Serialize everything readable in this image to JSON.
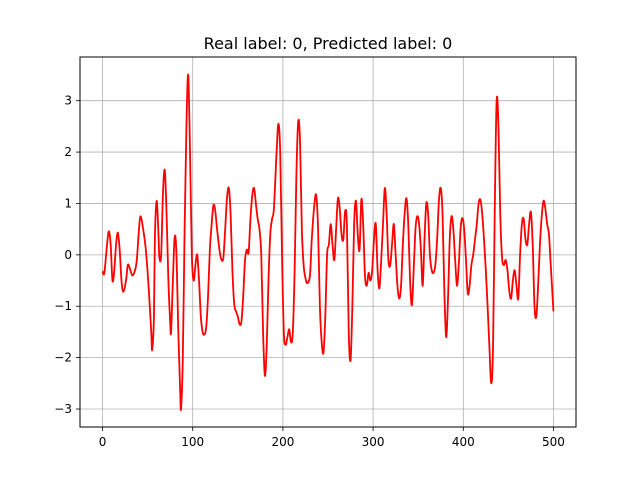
{
  "chart_data": {
    "type": "line",
    "title": "Real label: 0, Predicted label: 0",
    "xlabel": "",
    "ylabel": "",
    "xlim": [
      -25,
      525
    ],
    "ylim": [
      -3.35,
      3.85
    ],
    "xticks": [
      0,
      100,
      200,
      300,
      400,
      500
    ],
    "yticks": [
      -3,
      -2,
      -1,
      0,
      1,
      2,
      3
    ],
    "grid": true,
    "series": [
      {
        "name": "",
        "color": "#ff0000",
        "points": [
          [
            0,
            -0.32
          ],
          [
            2,
            -0.35
          ],
          [
            5,
            0.2
          ],
          [
            7,
            0.46
          ],
          [
            9,
            0.2
          ],
          [
            11,
            -0.5
          ],
          [
            13,
            -0.3
          ],
          [
            15,
            0.2
          ],
          [
            17,
            0.43
          ],
          [
            19,
            0.1
          ],
          [
            21,
            -0.5
          ],
          [
            23,
            -0.72
          ],
          [
            26,
            -0.5
          ],
          [
            28,
            -0.2
          ],
          [
            30,
            -0.25
          ],
          [
            33,
            -0.4
          ],
          [
            36,
            -0.3
          ],
          [
            38,
            -0.1
          ],
          [
            40,
            0.4
          ],
          [
            42,
            0.75
          ],
          [
            45,
            0.5
          ],
          [
            48,
            0.1
          ],
          [
            51,
            -0.6
          ],
          [
            54,
            -1.5
          ],
          [
            55,
            -1.85
          ],
          [
            57,
            -1.2
          ],
          [
            58,
            0.3
          ],
          [
            60,
            1.05
          ],
          [
            62,
            0.4
          ],
          [
            63,
            -0.05
          ],
          [
            65,
            0.0
          ],
          [
            67,
            1.2
          ],
          [
            69,
            1.65
          ],
          [
            71,
            0.8
          ],
          [
            73,
            -0.5
          ],
          [
            75,
            -1.3
          ],
          [
            76,
            -1.5
          ],
          [
            78,
            -0.5
          ],
          [
            80,
            0.35
          ],
          [
            82,
            0.0
          ],
          [
            84,
            -1.5
          ],
          [
            86,
            -2.6
          ],
          [
            87,
            -3.0
          ],
          [
            89,
            -2.0
          ],
          [
            91,
            0.5
          ],
          [
            93,
            2.5
          ],
          [
            95,
            3.5
          ],
          [
            97,
            2.0
          ],
          [
            99,
            0.0
          ],
          [
            101,
            -0.5
          ],
          [
            103,
            -0.2
          ],
          [
            105,
            0.0
          ],
          [
            107,
            -0.5
          ],
          [
            109,
            -1.2
          ],
          [
            111,
            -1.5
          ],
          [
            113,
            -1.55
          ],
          [
            115,
            -1.4
          ],
          [
            117,
            -0.8
          ],
          [
            119,
            0.1
          ],
          [
            121,
            0.6
          ],
          [
            123,
            0.97
          ],
          [
            125,
            0.85
          ],
          [
            127,
            0.5
          ],
          [
            130,
            0.05
          ],
          [
            132,
            -0.1
          ],
          [
            134,
            -0.05
          ],
          [
            136,
            0.5
          ],
          [
            138,
            1.1
          ],
          [
            140,
            1.3
          ],
          [
            142,
            0.8
          ],
          [
            144,
            -0.3
          ],
          [
            146,
            -0.95
          ],
          [
            148,
            -1.1
          ],
          [
            150,
            -1.2
          ],
          [
            152,
            -1.35
          ],
          [
            154,
            -1.3
          ],
          [
            156,
            -0.8
          ],
          [
            158,
            -0.1
          ],
          [
            160,
            0.1
          ],
          [
            162,
            0.05
          ],
          [
            164,
            0.7
          ],
          [
            166,
            1.15
          ],
          [
            168,
            1.3
          ],
          [
            170,
            1.0
          ],
          [
            172,
            0.7
          ],
          [
            174,
            0.5
          ],
          [
            176,
            0.0
          ],
          [
            178,
            -1.5
          ],
          [
            180,
            -2.35
          ],
          [
            182,
            -1.8
          ],
          [
            184,
            -0.5
          ],
          [
            186,
            0.4
          ],
          [
            188,
            0.7
          ],
          [
            190,
            0.9
          ],
          [
            193,
            2.0
          ],
          [
            195,
            2.55
          ],
          [
            197,
            2.0
          ],
          [
            199,
            0.0
          ],
          [
            201,
            -1.5
          ],
          [
            203,
            -1.75
          ],
          [
            205,
            -1.6
          ],
          [
            207,
            -1.45
          ],
          [
            209,
            -1.7
          ],
          [
            211,
            -1.5
          ],
          [
            213,
            -0.3
          ],
          [
            215,
            1.6
          ],
          [
            217,
            2.6
          ],
          [
            219,
            2.2
          ],
          [
            221,
            0.5
          ],
          [
            223,
            -0.2
          ],
          [
            225,
            -0.45
          ],
          [
            227,
            -0.55
          ],
          [
            230,
            -0.4
          ],
          [
            232,
            0.3
          ],
          [
            235,
            1.0
          ],
          [
            237,
            1.15
          ],
          [
            239,
            0.5
          ],
          [
            241,
            -1.0
          ],
          [
            243,
            -1.7
          ],
          [
            245,
            -1.9
          ],
          [
            247,
            -1.2
          ],
          [
            249,
            0.0
          ],
          [
            251,
            0.2
          ],
          [
            253,
            0.6
          ],
          [
            255,
            0.2
          ],
          [
            257,
            -0.1
          ],
          [
            259,
            0.5
          ],
          [
            261,
            1.1
          ],
          [
            263,
            0.9
          ],
          [
            265,
            0.4
          ],
          [
            267,
            0.3
          ],
          [
            269,
            0.85
          ],
          [
            271,
            0.55
          ],
          [
            273,
            -1.5
          ],
          [
            275,
            -2.05
          ],
          [
            277,
            -1.0
          ],
          [
            279,
            0.6
          ],
          [
            281,
            1.05
          ],
          [
            283,
            0.4
          ],
          [
            285,
            0.1
          ],
          [
            287,
            1.08
          ],
          [
            289,
            0.6
          ],
          [
            291,
            -0.4
          ],
          [
            293,
            -0.6
          ],
          [
            295,
            -0.35
          ],
          [
            297,
            -0.5
          ],
          [
            299,
            -0.3
          ],
          [
            301,
            0.3
          ],
          [
            303,
            0.6
          ],
          [
            305,
            -0.3
          ],
          [
            307,
            -0.65
          ],
          [
            309,
            -0.1
          ],
          [
            311,
            0.6
          ],
          [
            313,
            1.3
          ],
          [
            315,
            0.8
          ],
          [
            317,
            -0.1
          ],
          [
            319,
            -0.2
          ],
          [
            321,
            0.2
          ],
          [
            323,
            0.6
          ],
          [
            325,
            0.0
          ],
          [
            327,
            -0.6
          ],
          [
            329,
            -0.85
          ],
          [
            331,
            -0.6
          ],
          [
            333,
            0.2
          ],
          [
            335,
            0.8
          ],
          [
            337,
            1.1
          ],
          [
            339,
            0.6
          ],
          [
            341,
            -0.5
          ],
          [
            343,
            -0.98
          ],
          [
            345,
            -0.3
          ],
          [
            347,
            0.5
          ],
          [
            349,
            0.75
          ],
          [
            351,
            0.6
          ],
          [
            353,
            0.1
          ],
          [
            355,
            -0.6
          ],
          [
            357,
            0.3
          ],
          [
            359,
            1.0
          ],
          [
            361,
            0.8
          ],
          [
            363,
            0.0
          ],
          [
            365,
            -0.3
          ],
          [
            367,
            -0.35
          ],
          [
            369,
            -0.2
          ],
          [
            371,
            0.3
          ],
          [
            373,
            1.05
          ],
          [
            375,
            1.3
          ],
          [
            377,
            0.8
          ],
          [
            379,
            -0.7
          ],
          [
            381,
            -1.6
          ],
          [
            383,
            -0.9
          ],
          [
            385,
            0.3
          ],
          [
            387,
            0.75
          ],
          [
            389,
            0.5
          ],
          [
            391,
            -0.1
          ],
          [
            393,
            -0.6
          ],
          [
            395,
            -0.2
          ],
          [
            397,
            0.5
          ],
          [
            399,
            0.72
          ],
          [
            401,
            0.5
          ],
          [
            403,
            -0.1
          ],
          [
            405,
            -0.75
          ],
          [
            407,
            -0.6
          ],
          [
            409,
            -0.2
          ],
          [
            411,
            0.0
          ],
          [
            413,
            0.3
          ],
          [
            415,
            0.6
          ],
          [
            417,
            1.0
          ],
          [
            419,
            1.07
          ],
          [
            421,
            0.8
          ],
          [
            423,
            0.3
          ],
          [
            425,
            -0.3
          ],
          [
            427,
            -1.0
          ],
          [
            429,
            -1.8
          ],
          [
            431,
            -2.5
          ],
          [
            433,
            -1.8
          ],
          [
            435,
            1.0
          ],
          [
            437,
            3.0
          ],
          [
            439,
            2.5
          ],
          [
            441,
            0.8
          ],
          [
            443,
            -0.05
          ],
          [
            445,
            -0.2
          ],
          [
            447,
            -0.1
          ],
          [
            449,
            -0.3
          ],
          [
            451,
            -0.7
          ],
          [
            453,
            -0.85
          ],
          [
            455,
            -0.5
          ],
          [
            457,
            -0.3
          ],
          [
            459,
            -0.6
          ],
          [
            461,
            -0.85
          ],
          [
            463,
            0.0
          ],
          [
            465,
            0.6
          ],
          [
            467,
            0.7
          ],
          [
            469,
            0.3
          ],
          [
            471,
            0.2
          ],
          [
            473,
            0.6
          ],
          [
            475,
            0.83
          ],
          [
            477,
            0.2
          ],
          [
            479,
            -1.0
          ],
          [
            481,
            -1.2
          ],
          [
            483,
            -0.6
          ],
          [
            485,
            0.2
          ],
          [
            487,
            0.75
          ],
          [
            489,
            1.05
          ],
          [
            491,
            0.9
          ],
          [
            493,
            0.6
          ],
          [
            495,
            0.4
          ],
          [
            497,
            -0.2
          ],
          [
            499,
            -0.8
          ],
          [
            500,
            -1.1
          ]
        ]
      }
    ]
  }
}
